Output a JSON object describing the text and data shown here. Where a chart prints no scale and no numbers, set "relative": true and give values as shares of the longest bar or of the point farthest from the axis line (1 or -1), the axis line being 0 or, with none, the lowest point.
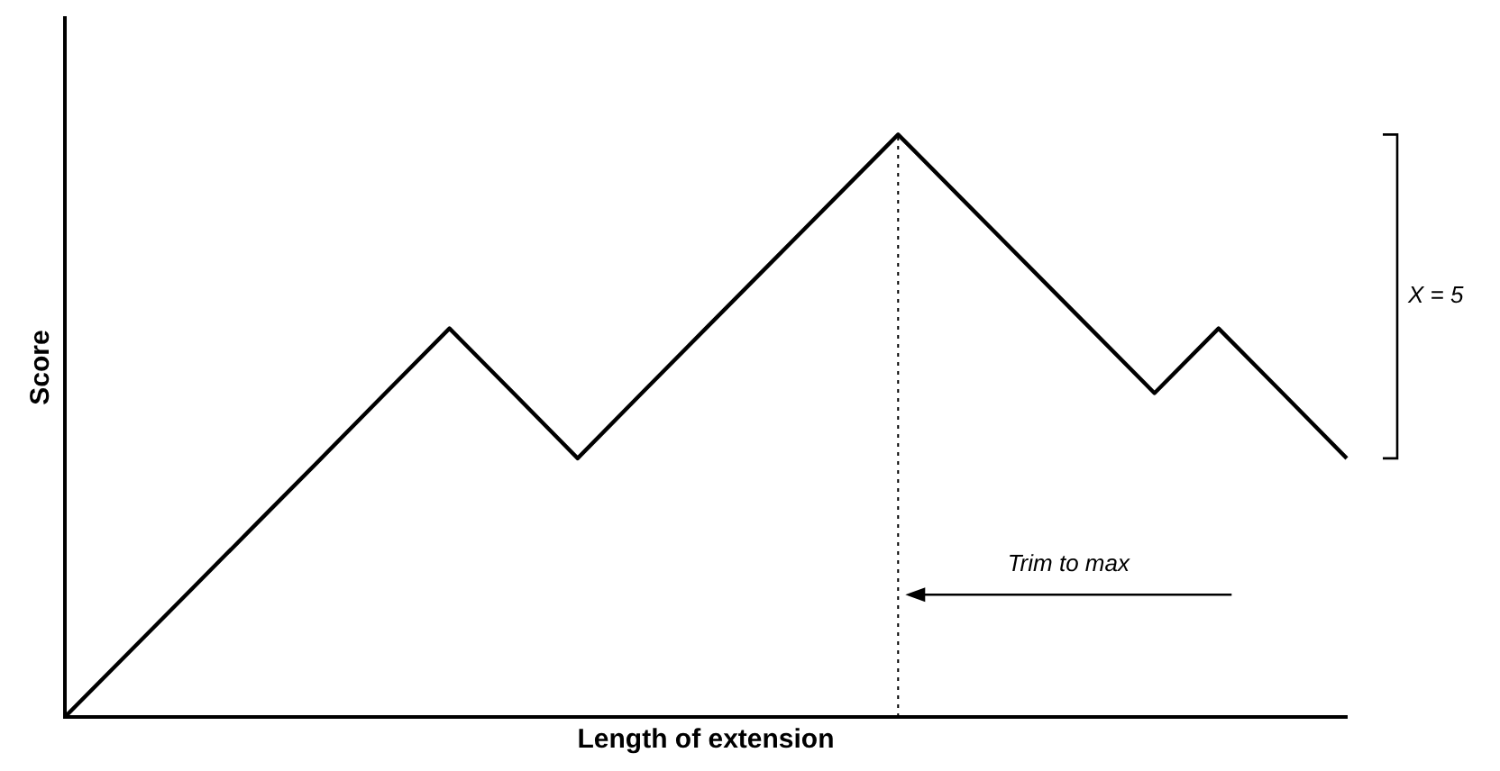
{
  "chart_data": {
    "type": "line",
    "xlabel": "Length of extension",
    "ylabel": "Score",
    "relative": true,
    "categories": [
      null,
      null,
      null,
      null,
      null,
      null,
      null,
      null,
      null,
      null,
      null,
      null,
      null,
      null,
      null,
      null,
      null,
      null,
      null,
      null,
      null
    ],
    "legend": false,
    "marker": "none",
    "line_style": "solid",
    "series": [
      {
        "color": "#000000",
        "values": [
          0,
          0.111,
          0.222,
          0.333,
          0.444,
          0.556,
          0.667,
          0.556,
          0.444,
          0.556,
          0.667,
          0.778,
          0.889,
          1,
          0.889,
          0.778,
          0.667,
          0.556,
          0.667,
          0.556,
          0.444
        ]
      }
    ],
    "annotations": [
      "X = 5",
      "Trim to max"
    ]
  }
}
